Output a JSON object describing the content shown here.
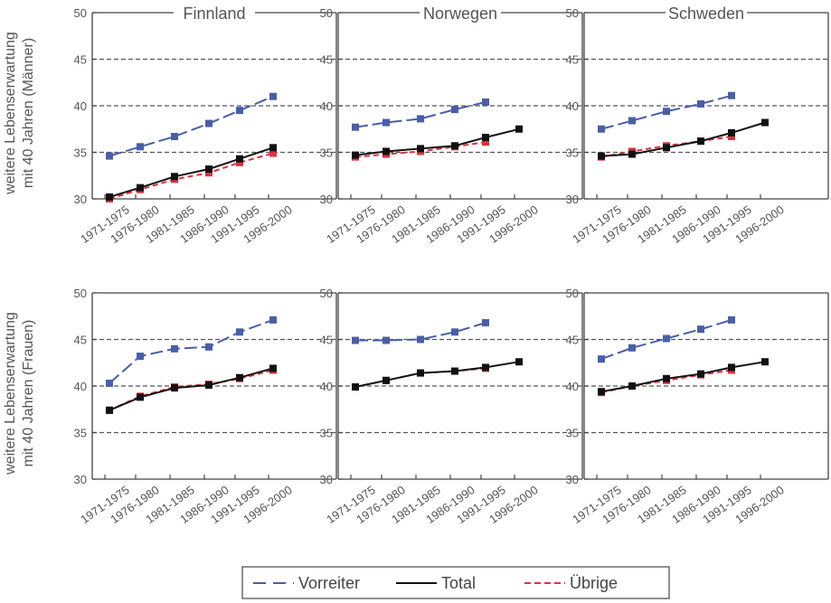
{
  "chart_data": {
    "type": "line",
    "categories": [
      "1971-1975",
      "1976-1980",
      "1981-1985",
      "1986-1990",
      "1991-1995",
      "1996-2000"
    ],
    "legend": {
      "placement": "bottom-center",
      "entries": [
        "Vorreiter",
        "Total",
        "Übrige"
      ]
    },
    "colors": {
      "Vorreiter": "#4a5ea8",
      "Total": "#111111",
      "Übrige": "#e03040"
    },
    "grid": {
      "style": "dashed",
      "values": [
        35,
        40,
        45
      ]
    },
    "rows": [
      {
        "ylabel_lines": [
          "weitere Lebenserwartung",
          "mit 40 Jahren (Männer)"
        ],
        "ylim": [
          30,
          50
        ],
        "yticks": [
          "30",
          "35",
          "40",
          "45",
          "50"
        ]
      },
      {
        "ylabel_lines": [
          "weitere Lebenserwartung",
          "mit 40 Jahren (Frauen)"
        ],
        "ylim": [
          30,
          50
        ],
        "yticks": [
          "30",
          "35",
          "40",
          "45",
          "50"
        ]
      }
    ],
    "panels": [
      {
        "row": 0,
        "col": 0,
        "title": "Finnland",
        "series": [
          {
            "name": "Vorreiter",
            "values": [
              34.6,
              35.6,
              36.7,
              38.1,
              39.5,
              41.0
            ]
          },
          {
            "name": "Total",
            "values": [
              30.2,
              31.2,
              32.4,
              33.2,
              34.3,
              35.5
            ]
          },
          {
            "name": "Übrige",
            "values": [
              30.0,
              31.0,
              32.1,
              32.8,
              33.9,
              34.9
            ]
          }
        ]
      },
      {
        "row": 0,
        "col": 1,
        "title": "Norwegen",
        "series": [
          {
            "name": "Vorreiter",
            "values": [
              37.7,
              38.2,
              38.6,
              39.6,
              40.4,
              null
            ]
          },
          {
            "name": "Total",
            "values": [
              34.7,
              35.1,
              35.4,
              35.7,
              36.6,
              37.5
            ]
          },
          {
            "name": "Übrige",
            "values": [
              34.5,
              34.8,
              35.1,
              35.6,
              36.1,
              null
            ]
          }
        ]
      },
      {
        "row": 0,
        "col": 2,
        "title": "Schweden",
        "series": [
          {
            "name": "Vorreiter",
            "values": [
              37.5,
              38.4,
              39.4,
              40.2,
              41.1,
              null
            ]
          },
          {
            "name": "Total",
            "values": [
              34.6,
              34.8,
              35.5,
              36.2,
              37.1,
              38.2
            ]
          },
          {
            "name": "Übrige",
            "values": [
              34.5,
              35.1,
              35.7,
              36.2,
              36.7,
              null
            ]
          }
        ]
      },
      {
        "row": 1,
        "col": 0,
        "title": "",
        "series": [
          {
            "name": "Vorreiter",
            "values": [
              40.3,
              43.2,
              44.0,
              44.2,
              45.8,
              47.1
            ]
          },
          {
            "name": "Total",
            "values": [
              37.4,
              38.8,
              39.8,
              40.1,
              40.9,
              41.9
            ]
          },
          {
            "name": "Übrige",
            "values": [
              37.4,
              38.9,
              39.9,
              40.2,
              40.8,
              41.7
            ]
          }
        ]
      },
      {
        "row": 1,
        "col": 1,
        "title": "",
        "series": [
          {
            "name": "Vorreiter",
            "values": [
              44.9,
              44.9,
              45.0,
              45.8,
              46.8,
              null
            ]
          },
          {
            "name": "Total",
            "values": [
              39.9,
              40.6,
              41.4,
              41.6,
              42.0,
              42.6
            ]
          },
          {
            "name": "Übrige",
            "values": [
              39.9,
              40.6,
              41.4,
              41.6,
              41.9,
              null
            ]
          }
        ]
      },
      {
        "row": 1,
        "col": 2,
        "title": "",
        "series": [
          {
            "name": "Vorreiter",
            "values": [
              42.9,
              44.1,
              45.1,
              46.1,
              47.1,
              null
            ]
          },
          {
            "name": "Total",
            "values": [
              39.4,
              40.0,
              40.8,
              41.3,
              42.0,
              42.6
            ]
          },
          {
            "name": "Übrige",
            "values": [
              39.3,
              40.0,
              40.6,
              41.2,
              41.7,
              null
            ]
          }
        ]
      }
    ]
  }
}
